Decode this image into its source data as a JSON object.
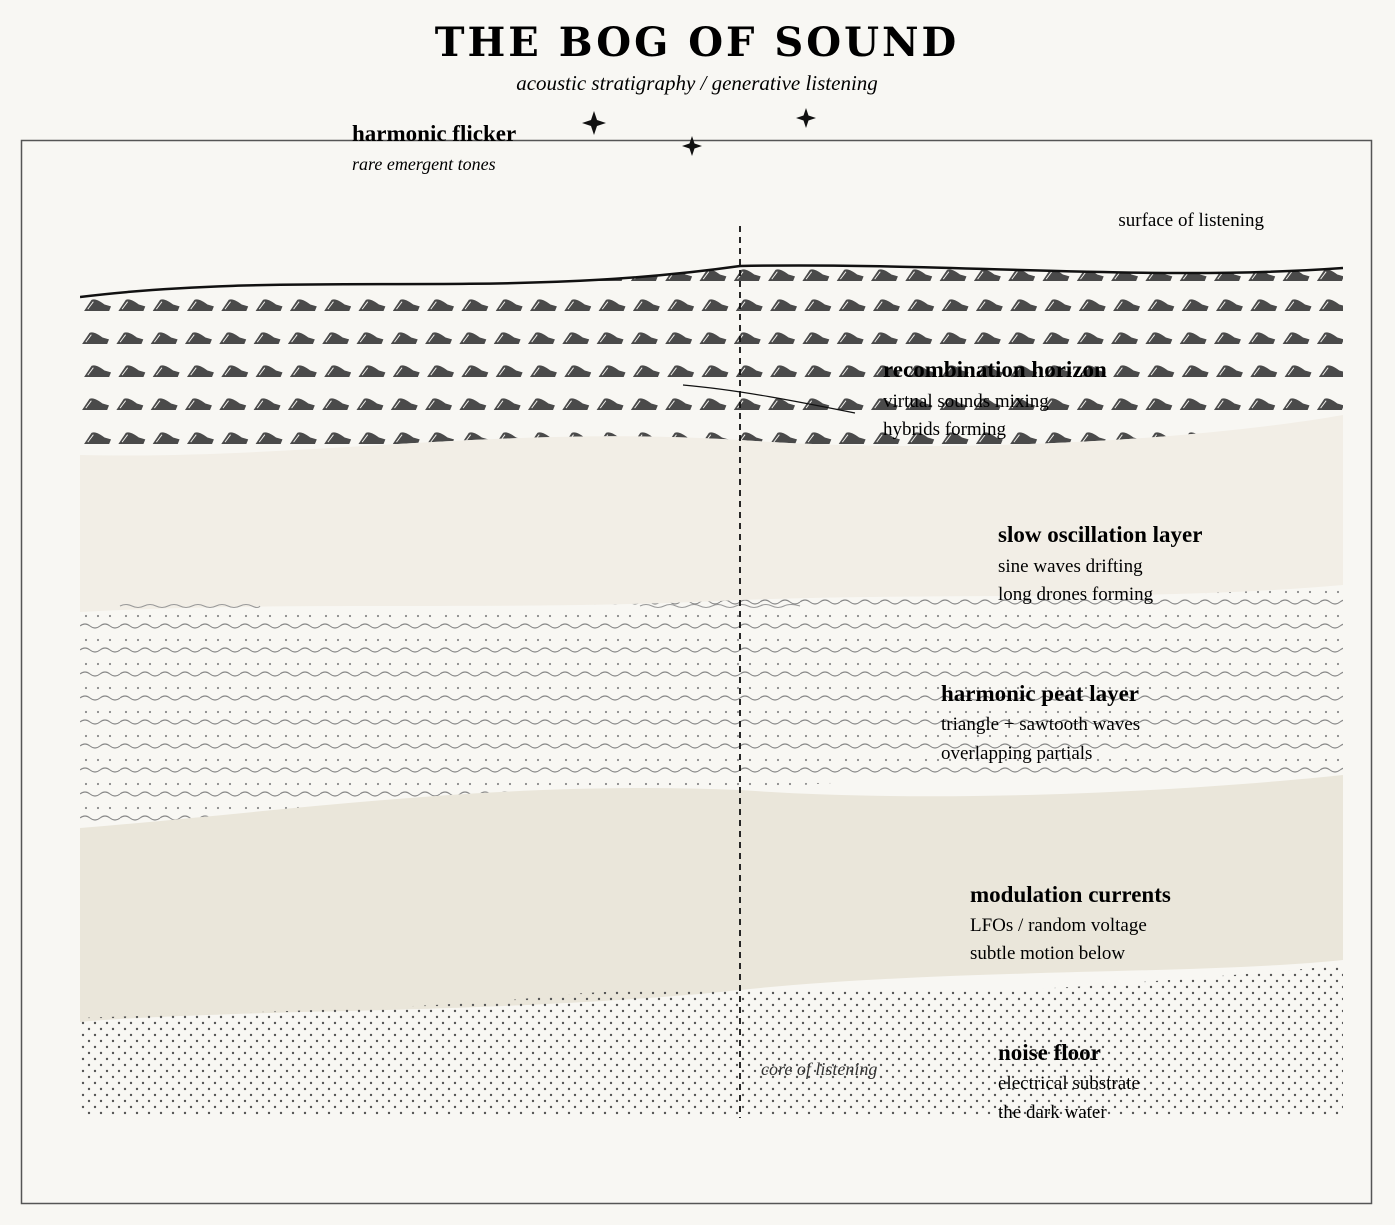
{
  "title": "THE BOG OF SOUND",
  "subtitle": "acoustic stratigraphy / generative listening",
  "flicker": {
    "title": "harmonic flicker",
    "sub": "rare emergent tones"
  },
  "surface_label": "surface of listening",
  "core_label": "core of listening",
  "layers": [
    {
      "title": "recombination horizon",
      "lines": [
        "virtual sounds mixing",
        "hybrids forming"
      ]
    },
    {
      "title": "slow oscillation layer",
      "lines": [
        "sine waves drifting",
        "long drones forming"
      ]
    },
    {
      "title": "harmonic peat layer",
      "lines": [
        "triangle + sawtooth waves",
        "overlapping partials"
      ]
    },
    {
      "title": "modulation currents",
      "lines": [
        "LFOs / random voltage",
        "subtle motion below"
      ]
    },
    {
      "title": "noise floor",
      "lines": [
        "electrical substrate",
        "the dark water"
      ]
    }
  ],
  "colors": {
    "background": "#f8f7f3",
    "ink": "#1a1a1a",
    "slow_layer": "#f2eee6",
    "modulation_layer": "#eae6da",
    "peat_marks": "#8a8a8a",
    "noise_dots": "#555555",
    "leaf": "#4a4a4a"
  },
  "icons": [
    "sparkle-icon",
    "leaf-mark-icon"
  ]
}
